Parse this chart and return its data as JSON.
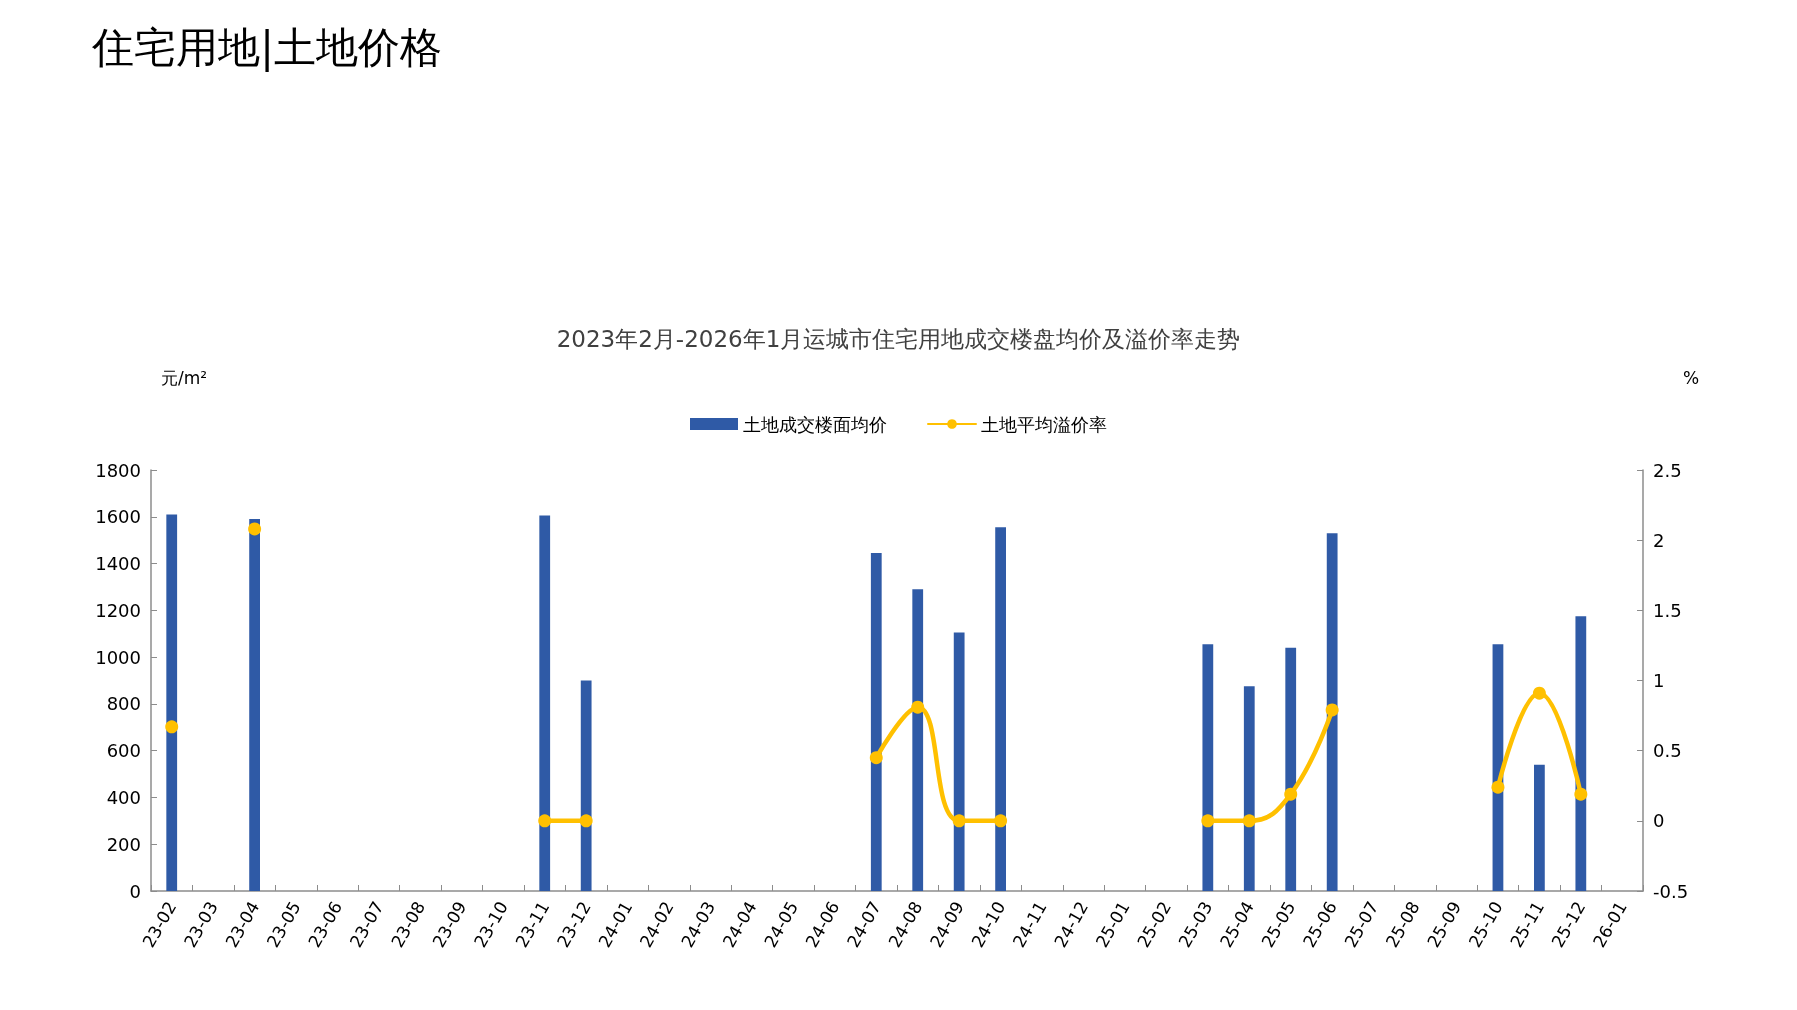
{
  "chart_data": {
    "type": "bar",
    "title": "2023年2月-2026年1月运城市住宅用地成交楼盘均价及溢价率走势",
    "ylabel": "元/m²",
    "y2label": "%",
    "annotations": [
      "住宅用地|土地价格"
    ],
    "categories": [
      "23-02",
      "23-03",
      "23-04",
      "23-05",
      "23-06",
      "23-07",
      "23-08",
      "23-09",
      "23-10",
      "23-11",
      "23-12",
      "24-01",
      "24-02",
      "24-03",
      "24-04",
      "24-05",
      "24-06",
      "24-07",
      "24-08",
      "24-09",
      "24-10",
      "24-11",
      "24-12",
      "25-01",
      "25-02",
      "25-03",
      "25-04",
      "25-05",
      "25-06",
      "25-07",
      "25-08",
      "25-09",
      "25-10",
      "25-11",
      "25-12",
      "26-01"
    ],
    "series": [
      {
        "name": "土地成交楼面均价",
        "color": "#2f5aa6",
        "values": [
          1610,
          null,
          1590,
          null,
          null,
          null,
          null,
          null,
          null,
          1605,
          900,
          null,
          null,
          null,
          null,
          null,
          null,
          1445,
          1290,
          1105,
          1555,
          null,
          null,
          null,
          null,
          1055,
          875,
          1040,
          1530,
          null,
          null,
          null,
          1055,
          540,
          1175,
          null
        ]
      },
      {
        "name": "土地平均溢价率",
        "type": "line",
        "axis": "y2",
        "color": "#ffc000",
        "values": [
          0.67,
          null,
          2.08,
          null,
          null,
          null,
          null,
          null,
          null,
          0,
          0,
          null,
          null,
          null,
          null,
          null,
          null,
          0.45,
          0.81,
          0,
          0,
          null,
          null,
          null,
          null,
          0,
          0,
          0.19,
          0.79,
          null,
          null,
          null,
          0.24,
          0.91,
          0.19,
          null
        ]
      }
    ],
    "ylim": [
      0,
      1800
    ],
    "yticks": [
      0,
      200,
      400,
      600,
      800,
      1000,
      1200,
      1400,
      1600,
      1800
    ],
    "y2lim": [
      -0.5,
      2.5
    ],
    "y2ticks": [
      -0.5,
      0,
      0.5,
      1,
      1.5,
      2,
      2.5
    ],
    "grid": false,
    "legend": "top",
    "marker": "circle",
    "line_style": "solid"
  }
}
